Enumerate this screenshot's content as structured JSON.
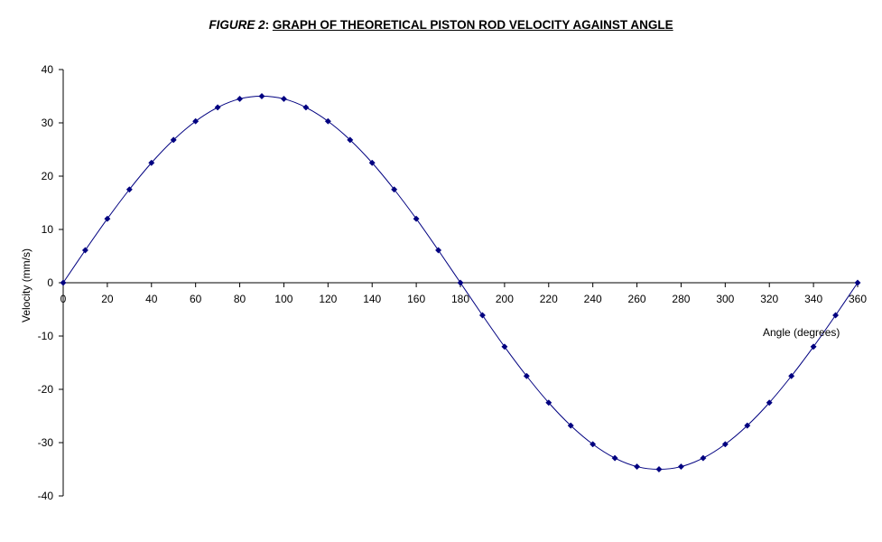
{
  "title": {
    "figure_label": "FIGURE 2",
    "separator": ": ",
    "main_text": "GRAPH OF THEORETICAL PISTON ROD VELOCITY AGAINST ANGLE"
  },
  "colors": {
    "series": "#000080",
    "axis": "#000000",
    "background": "#ffffff"
  },
  "chart_data": {
    "type": "line",
    "title": "GRAPH OF THEORETICAL PISTON ROD VELOCITY AGAINST ANGLE",
    "xlabel": "Angle (degrees)",
    "ylabel": "Velocity (mm/s)",
    "xlim": [
      0,
      360
    ],
    "ylim": [
      -40,
      40
    ],
    "x_ticks": [
      0,
      20,
      40,
      60,
      80,
      100,
      120,
      140,
      160,
      180,
      200,
      220,
      240,
      260,
      280,
      300,
      320,
      340,
      360
    ],
    "y_ticks": [
      40,
      30,
      20,
      10,
      0,
      -10,
      -20,
      -30,
      -40
    ],
    "grid": false,
    "legend": "none",
    "marker": "diamond",
    "smoothed": true,
    "series": [
      {
        "x": [
          0,
          10,
          20,
          30,
          40,
          50,
          60,
          70,
          80,
          90,
          100,
          110,
          120,
          130,
          140,
          150,
          160,
          170,
          180,
          190,
          200,
          210,
          220,
          230,
          240,
          250,
          260,
          270,
          280,
          290,
          300,
          310,
          320,
          330,
          340,
          350,
          360
        ],
        "values": [
          0,
          6.1,
          12.0,
          17.5,
          22.5,
          26.8,
          30.3,
          32.9,
          34.5,
          35.0,
          34.5,
          32.9,
          30.3,
          26.8,
          22.5,
          17.5,
          12.0,
          6.1,
          0,
          -6.1,
          -12.0,
          -17.5,
          -22.5,
          -26.8,
          -30.3,
          -32.9,
          -34.5,
          -35.0,
          -34.5,
          -32.9,
          -30.3,
          -26.8,
          -22.5,
          -17.5,
          -12.0,
          -6.1,
          0
        ]
      }
    ]
  }
}
